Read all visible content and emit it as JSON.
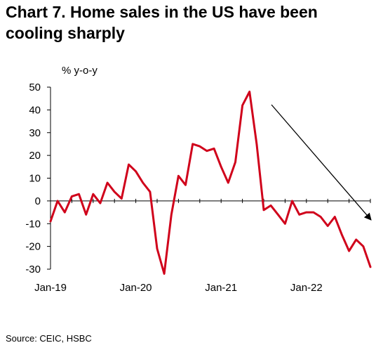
{
  "title": "Chart 7. Home sales in the US have been cooling sharply",
  "source": "Source:  CEIC, HSBC",
  "chart_data": {
    "type": "line",
    "title": "Chart 7. Home sales in the US have been cooling sharply",
    "ylabel": "% y-o-y",
    "xlabel": "",
    "ylim": [
      -30,
      50
    ],
    "yticks": [
      50,
      40,
      30,
      20,
      10,
      0,
      -10,
      -20,
      -30
    ],
    "xticks": [
      {
        "label": "Jan-19",
        "index": 0
      },
      {
        "label": "Jan-20",
        "index": 12
      },
      {
        "label": "Jan-21",
        "index": 24
      },
      {
        "label": "Jan-22",
        "index": 36
      }
    ],
    "grid": false,
    "legend": "none",
    "annotation": "downward-trend-arrow",
    "series": [
      {
        "color": "#d0021b",
        "values": [
          -9,
          0,
          -5,
          2,
          3,
          -6,
          3,
          -1,
          8,
          4,
          1,
          16,
          13,
          8,
          4,
          -21,
          -32,
          -6,
          11,
          7,
          25,
          24,
          22,
          23,
          15,
          8,
          17,
          42,
          48,
          25,
          -4,
          -2,
          -6,
          -10,
          0,
          -6,
          -5,
          -5,
          -7,
          -11,
          -7,
          -15,
          -22,
          -17,
          -20,
          -29
        ]
      }
    ]
  }
}
